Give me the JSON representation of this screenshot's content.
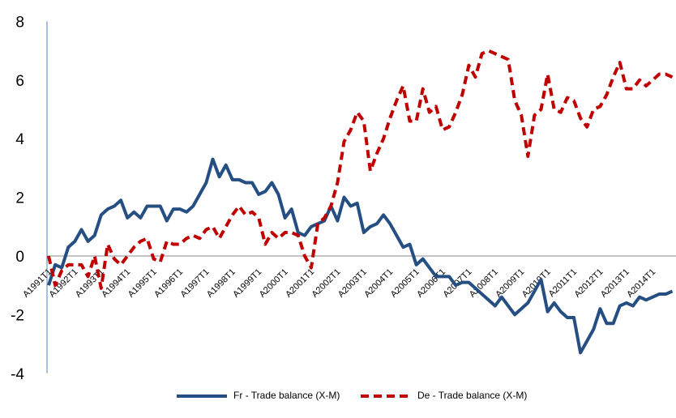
{
  "chart_data": {
    "type": "line",
    "categories": [
      "A1991T1",
      null,
      null,
      null,
      "A1992T1",
      null,
      null,
      null,
      "A1993T1",
      null,
      null,
      null,
      "A1994T1",
      null,
      null,
      null,
      "A1995T1",
      null,
      null,
      null,
      "A1996T1",
      null,
      null,
      null,
      "A1997T1",
      null,
      null,
      null,
      "A1998T1",
      null,
      null,
      null,
      "A1999T1",
      null,
      null,
      null,
      "A2000T1",
      null,
      null,
      null,
      "A2001T1",
      null,
      null,
      null,
      "A2002T1",
      null,
      null,
      null,
      "A2003T1",
      null,
      null,
      null,
      "A2004T1",
      null,
      null,
      null,
      "A2005T1",
      null,
      null,
      null,
      "A2006T1",
      null,
      null,
      null,
      "A2007T1",
      null,
      null,
      null,
      "A2008T1",
      null,
      null,
      null,
      "A2009T1",
      null,
      null,
      null,
      "A2010T1",
      null,
      null,
      null,
      "A2011T1",
      null,
      null,
      null,
      "A2012T1",
      null,
      null,
      null,
      "A2013T1",
      null,
      null,
      null,
      "A2014T1",
      null,
      null,
      null
    ],
    "series": [
      {
        "name": "Fr - Trade balance (X-M)",
        "color": "#254e82",
        "dashed": false,
        "values": [
          -1.0,
          -0.3,
          -0.4,
          0.3,
          0.5,
          0.9,
          0.5,
          0.7,
          1.4,
          1.6,
          1.7,
          1.9,
          1.3,
          1.5,
          1.3,
          1.7,
          1.7,
          1.7,
          1.2,
          1.6,
          1.6,
          1.5,
          1.7,
          2.1,
          2.5,
          3.3,
          2.7,
          3.1,
          2.6,
          2.6,
          2.5,
          2.5,
          2.1,
          2.2,
          2.5,
          2.1,
          1.3,
          1.6,
          0.8,
          0.7,
          1.0,
          1.1,
          1.2,
          1.7,
          1.2,
          2.0,
          1.7,
          1.8,
          0.8,
          1.0,
          1.1,
          1.4,
          1.1,
          0.7,
          0.3,
          0.4,
          -0.3,
          -0.1,
          -0.4,
          -0.7,
          -0.7,
          -0.7,
          -1.0,
          -0.9,
          -0.9,
          -1.1,
          -1.3,
          -1.5,
          -1.7,
          -1.4,
          -1.7,
          -2.0,
          -1.8,
          -1.6,
          -1.2,
          -0.8,
          -1.9,
          -1.6,
          -1.9,
          -2.1,
          -2.1,
          -3.3,
          -2.9,
          -2.5,
          -1.8,
          -2.3,
          -2.3,
          -1.7,
          -1.6,
          -1.7,
          -1.4,
          -1.5,
          -1.4,
          -1.3,
          -1.3,
          -1.2
        ]
      },
      {
        "name": "De - Trade balance (X-M)",
        "color": "#c00000",
        "dashed": true,
        "values": [
          0.0,
          -1.0,
          -0.5,
          -0.3,
          -0.3,
          -0.3,
          -0.7,
          0.0,
          -1.1,
          0.4,
          -0.1,
          -0.3,
          0.0,
          0.3,
          0.5,
          0.6,
          -0.1,
          -0.2,
          0.5,
          0.4,
          0.4,
          0.6,
          0.7,
          0.6,
          0.9,
          1.0,
          0.6,
          1.0,
          1.4,
          1.7,
          1.4,
          1.5,
          1.3,
          0.4,
          0.8,
          0.6,
          0.8,
          0.8,
          0.7,
          0.0,
          -0.4,
          1.1,
          1.3,
          1.7,
          2.5,
          3.9,
          4.3,
          4.9,
          4.6,
          2.9,
          3.5,
          4.0,
          4.7,
          5.3,
          5.8,
          4.6,
          4.6,
          5.7,
          4.9,
          5.1,
          4.3,
          4.4,
          4.9,
          5.5,
          6.5,
          6.1,
          6.9,
          7.0,
          6.9,
          6.8,
          6.7,
          5.3,
          4.8,
          3.4,
          4.8,
          5.0,
          6.2,
          5.0,
          4.9,
          5.4,
          5.3,
          4.7,
          4.4,
          5.0,
          5.1,
          5.5,
          6.1,
          6.6,
          5.7,
          5.7,
          6.0,
          5.8,
          6.0,
          6.2,
          6.2,
          6.1
        ]
      }
    ],
    "ylim": [
      -4,
      8
    ],
    "yticks": [
      -4,
      -2,
      0,
      2,
      4,
      6,
      8
    ],
    "legend": "bottom"
  }
}
